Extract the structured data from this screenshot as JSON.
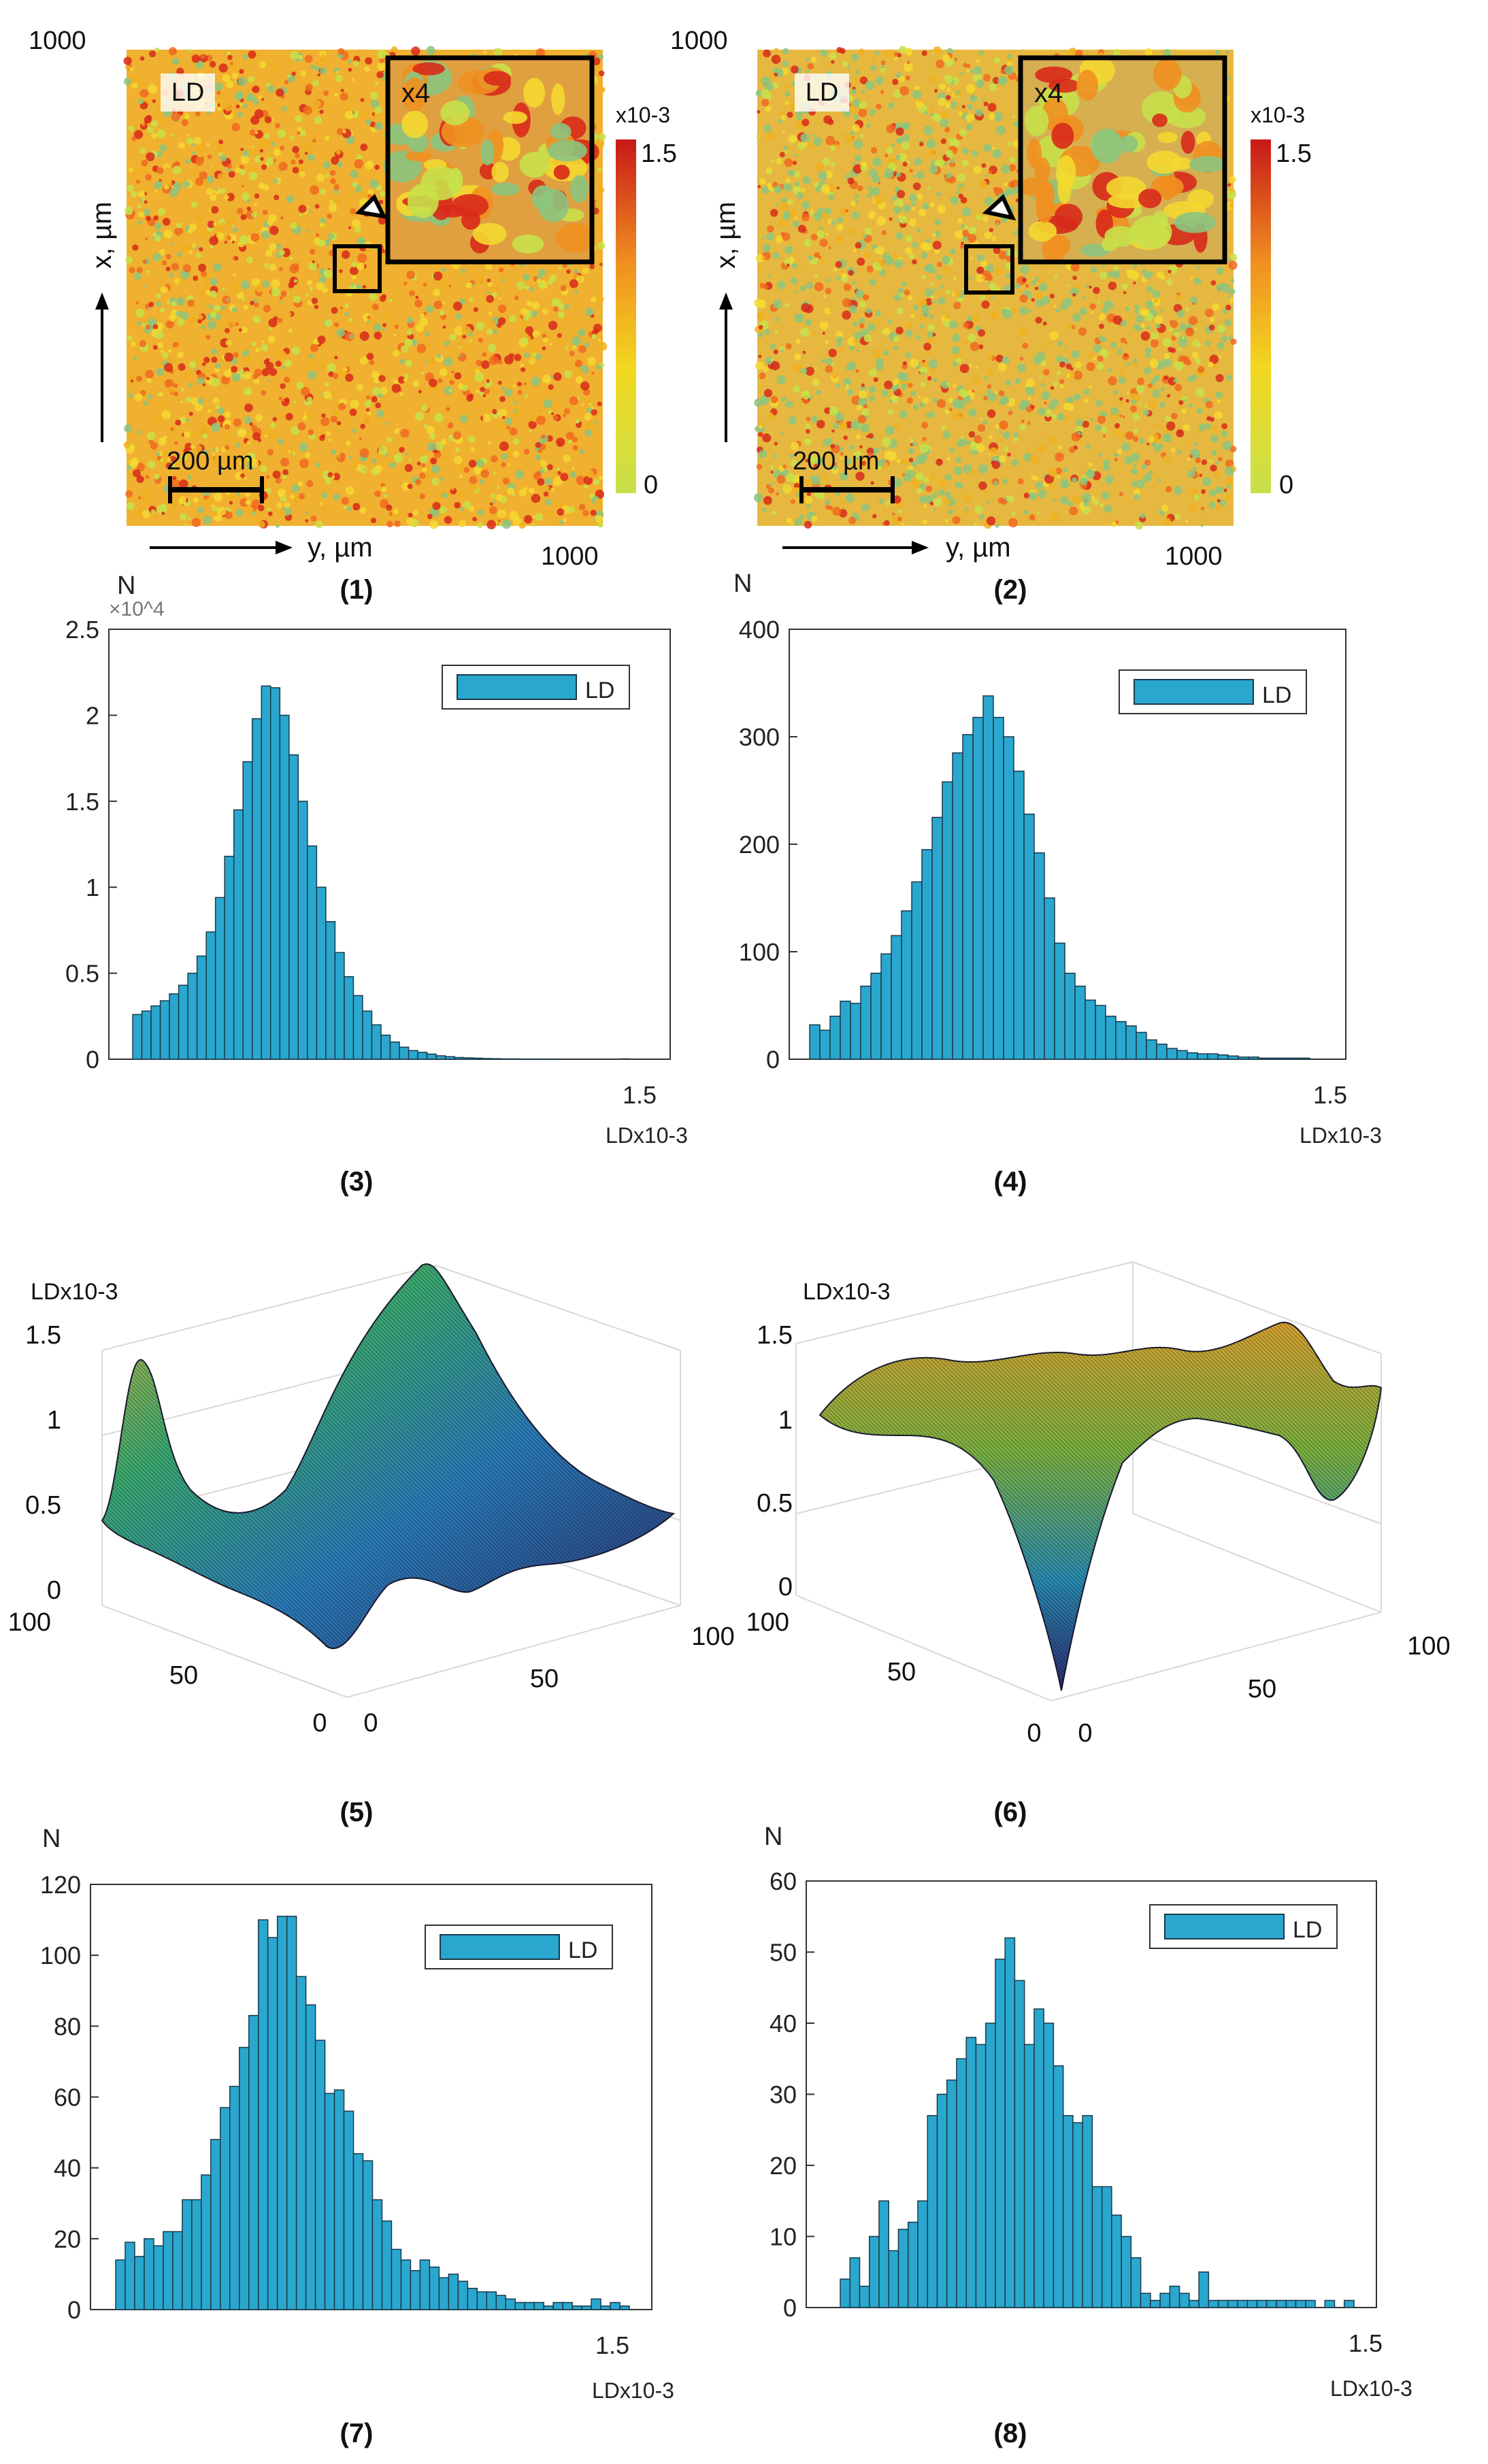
{
  "colors": {
    "bar_fill": "#2aa7cf",
    "bar_stroke": "#1a3a4a",
    "map_low": "#c8e04a",
    "map_mid": "#f0c020",
    "map_high": "#d01818",
    "map_green": "#8cc47e",
    "surface_dark": "#202040",
    "surface_blue": "#2a7ab8",
    "surface_green": "#3aa870",
    "surface_yellow": "#d4b43a"
  },
  "maps": [
    {
      "panel": "(1)",
      "badge": "LD",
      "zoom_label": "x4",
      "scale_bar": "200 µm",
      "x_axis_label": "x, µm",
      "y_axis_label": "y, µm",
      "axis_max_x": "1000",
      "axis_max_y": "1000",
      "colorbar_exp": "x10-3",
      "colorbar_max": "1.5",
      "colorbar_min": "0"
    },
    {
      "panel": "(2)",
      "badge": "LD",
      "zoom_label": "x4",
      "scale_bar": "200 µm",
      "x_axis_label": "x, µm",
      "y_axis_label": "y, µm",
      "axis_max_x": "1000",
      "axis_max_y": "1000",
      "colorbar_exp": "x10-3",
      "colorbar_max": "1.5",
      "colorbar_min": "0"
    }
  ],
  "chart_data": [
    {
      "panel": "(3)",
      "type": "bar",
      "title": "",
      "ylabel": "N",
      "y_multiplier": "×10^4",
      "xlabel": "LDx10-3",
      "x_tick": "1.5",
      "ylim": [
        0,
        2.5
      ],
      "yticks": [
        "0",
        "0.5",
        "1",
        "1.5",
        "2",
        "2.5"
      ],
      "legend": "LD",
      "values": [
        0.26,
        0.28,
        0.31,
        0.34,
        0.38,
        0.43,
        0.5,
        0.6,
        0.74,
        0.94,
        1.18,
        1.45,
        1.73,
        1.98,
        2.17,
        2.16,
        2.0,
        1.77,
        1.5,
        1.24,
        1.0,
        0.8,
        0.62,
        0.48,
        0.37,
        0.28,
        0.2,
        0.14,
        0.1,
        0.07,
        0.05,
        0.04,
        0.03,
        0.02,
        0.015,
        0.01,
        0.008,
        0.006,
        0.004,
        0.003,
        0.002,
        0.002,
        0.001,
        0.001,
        0.001,
        0.001,
        0.0,
        0.0,
        0.0,
        0.0,
        0.0,
        0.0,
        0.0,
        0.002
      ]
    },
    {
      "panel": "(4)",
      "type": "bar",
      "title": "",
      "ylabel": "N",
      "xlabel": "LDx10-3",
      "x_tick": "1.5",
      "ylim": [
        0,
        400
      ],
      "yticks": [
        "0",
        "100",
        "200",
        "300",
        "400"
      ],
      "legend": "LD",
      "values": [
        32,
        27,
        40,
        54,
        52,
        68,
        80,
        98,
        115,
        138,
        165,
        195,
        225,
        258,
        285,
        302,
        318,
        338,
        318,
        300,
        268,
        228,
        192,
        150,
        108,
        80,
        68,
        55,
        50,
        40,
        35,
        31,
        25,
        18,
        14,
        10,
        8,
        6,
        5,
        5,
        4,
        3,
        2,
        2,
        1,
        1,
        1,
        1,
        1
      ]
    },
    {
      "panel": "(5)",
      "type": "surface",
      "zlabel": "LDx10-3",
      "zticks": [
        "0",
        "0.5",
        "1",
        "1.5"
      ],
      "x_ticks": [
        "0",
        "50",
        "100"
      ],
      "y_ticks": [
        "0",
        "50",
        "100"
      ],
      "zlim": [
        0,
        1.5
      ]
    },
    {
      "panel": "(6)",
      "type": "surface",
      "zlabel": "LDx10-3",
      "zticks": [
        "0",
        "0.5",
        "1",
        "1.5"
      ],
      "x_ticks": [
        "0",
        "50",
        "100"
      ],
      "y_ticks": [
        "0",
        "50",
        "100"
      ],
      "zlim": [
        0,
        1.5
      ]
    },
    {
      "panel": "(7)",
      "type": "bar",
      "title": "",
      "ylabel": "N",
      "xlabel": "LDx10-3",
      "x_tick": "1.5",
      "ylim": [
        0,
        120
      ],
      "yticks": [
        "0",
        "20",
        "40",
        "60",
        "80",
        "100",
        "120"
      ],
      "legend": "LD",
      "values": [
        14,
        19,
        15,
        20,
        18,
        22,
        22,
        31,
        31,
        38,
        48,
        57,
        63,
        74,
        83,
        110,
        105,
        111,
        111,
        94,
        86,
        76,
        61,
        62,
        56,
        44,
        42,
        31,
        25,
        17,
        14,
        11,
        14,
        12,
        9,
        10,
        8,
        6,
        5,
        5,
        4,
        3,
        2,
        2,
        2,
        1,
        2,
        2,
        1,
        1,
        3,
        1,
        2,
        1
      ]
    },
    {
      "panel": "(8)",
      "type": "bar",
      "title": "",
      "ylabel": "N",
      "xlabel": "LDx10-3",
      "x_tick": "1.5",
      "ylim": [
        0,
        60
      ],
      "yticks": [
        "0",
        "10",
        "20",
        "30",
        "40",
        "50",
        "60"
      ],
      "legend": "LD",
      "values": [
        4,
        7,
        3,
        10,
        15,
        8,
        11,
        12,
        15,
        27,
        30,
        32,
        35,
        38,
        37,
        40,
        49,
        52,
        46,
        37,
        42,
        40,
        34,
        27,
        26,
        27,
        17,
        17,
        13,
        10,
        7,
        2,
        1,
        2,
        3,
        2,
        1,
        5,
        1,
        1,
        1,
        1,
        1,
        1,
        1,
        1,
        1,
        1,
        1,
        0,
        1,
        0,
        1
      ]
    }
  ]
}
